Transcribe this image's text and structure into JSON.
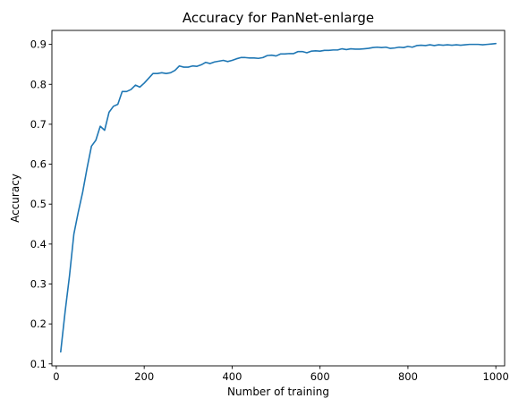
{
  "chart_data": {
    "type": "line",
    "title": "Accuracy for PanNet-enlarge",
    "xlabel": "Number of training",
    "ylabel": "Accuracy",
    "xlim": [
      -10,
      1020
    ],
    "ylim": [
      0.095,
      0.935
    ],
    "xticks": [
      0,
      200,
      400,
      600,
      800,
      1000
    ],
    "yticks": [
      0.1,
      0.2,
      0.3,
      0.4,
      0.5,
      0.6,
      0.7,
      0.8,
      0.9
    ],
    "xtick_labels": [
      "0",
      "200",
      "400",
      "600",
      "800",
      "1000"
    ],
    "ytick_labels": [
      "0.1",
      "0.2",
      "0.3",
      "0.4",
      "0.5",
      "0.6",
      "0.7",
      "0.8",
      "0.9"
    ],
    "grid": false,
    "series": [
      {
        "color": "#1f77b4",
        "x": [
          10,
          20,
          30,
          40,
          50,
          60,
          70,
          80,
          90,
          100,
          110,
          120,
          130,
          140,
          150,
          160,
          170,
          180,
          190,
          200,
          210,
          220,
          230,
          240,
          250,
          260,
          270,
          280,
          290,
          300,
          310,
          320,
          330,
          340,
          350,
          360,
          370,
          380,
          390,
          400,
          410,
          420,
          430,
          440,
          450,
          460,
          470,
          480,
          490,
          500,
          510,
          520,
          530,
          540,
          550,
          560,
          570,
          580,
          590,
          600,
          610,
          620,
          630,
          640,
          650,
          660,
          670,
          680,
          690,
          700,
          710,
          720,
          730,
          740,
          750,
          760,
          770,
          780,
          790,
          800,
          810,
          820,
          830,
          840,
          850,
          860,
          870,
          880,
          890,
          900,
          910,
          920,
          930,
          940,
          950,
          960,
          970,
          980,
          990,
          1000
        ],
        "y": [
          0.13,
          0.23,
          0.32,
          0.425,
          0.48,
          0.53,
          0.59,
          0.645,
          0.66,
          0.695,
          0.685,
          0.73,
          0.745,
          0.75,
          0.782,
          0.782,
          0.787,
          0.798,
          0.793,
          0.803,
          0.815,
          0.827,
          0.827,
          0.829,
          0.827,
          0.829,
          0.835,
          0.846,
          0.843,
          0.843,
          0.846,
          0.845,
          0.849,
          0.855,
          0.852,
          0.856,
          0.858,
          0.86,
          0.857,
          0.86,
          0.864,
          0.867,
          0.867,
          0.866,
          0.866,
          0.865,
          0.867,
          0.872,
          0.873,
          0.871,
          0.876,
          0.876,
          0.877,
          0.877,
          0.882,
          0.882,
          0.879,
          0.883,
          0.884,
          0.883,
          0.885,
          0.885,
          0.886,
          0.886,
          0.889,
          0.887,
          0.889,
          0.888,
          0.888,
          0.889,
          0.89,
          0.892,
          0.893,
          0.892,
          0.893,
          0.89,
          0.891,
          0.893,
          0.892,
          0.895,
          0.893,
          0.897,
          0.898,
          0.897,
          0.899,
          0.897,
          0.899,
          0.898,
          0.899,
          0.898,
          0.899,
          0.898,
          0.899,
          0.9,
          0.9,
          0.9,
          0.899,
          0.9,
          0.901,
          0.902
        ]
      }
    ]
  }
}
